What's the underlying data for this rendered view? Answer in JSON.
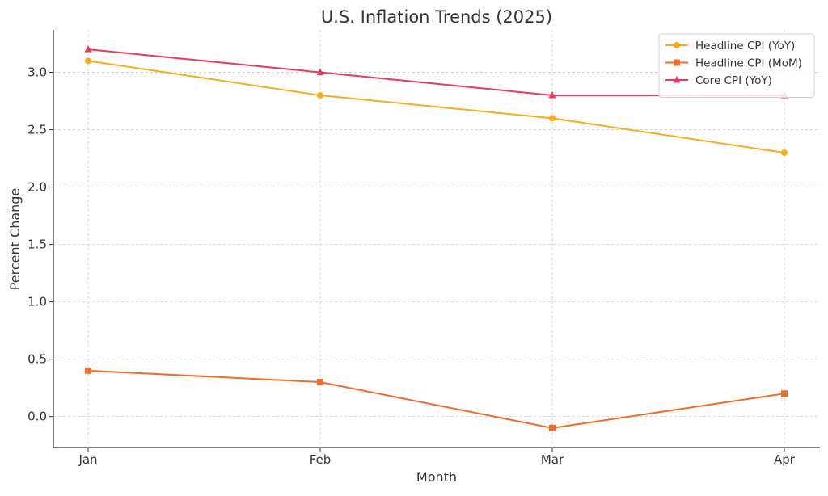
{
  "chart_data": {
    "type": "line",
    "title": "U.S. Inflation Trends (2025)",
    "xlabel": "Month",
    "ylabel": "Percent Change",
    "categories": [
      "Jan",
      "Feb",
      "Mar",
      "Apr"
    ],
    "yticks": [
      "0.0",
      "0.5",
      "1.0",
      "1.5",
      "2.0",
      "2.5",
      "3.0"
    ],
    "ylim": [
      -0.27,
      3.37
    ],
    "grid": true,
    "legend_position": "top-right",
    "series": [
      {
        "name": "Headline CPI (YoY)",
        "values": [
          3.1,
          2.8,
          2.6,
          2.3
        ],
        "color": "#fbaa1a",
        "marker": "circle"
      },
      {
        "name": "Headline CPI (MoM)",
        "values": [
          0.4,
          0.3,
          -0.1,
          0.2
        ],
        "color": "#ef6c2a",
        "marker": "square"
      },
      {
        "name": "Core CPI (YoY)",
        "values": [
          3.2,
          3.0,
          2.8,
          2.8
        ],
        "color": "#e73a5c",
        "marker": "triangle"
      }
    ]
  }
}
